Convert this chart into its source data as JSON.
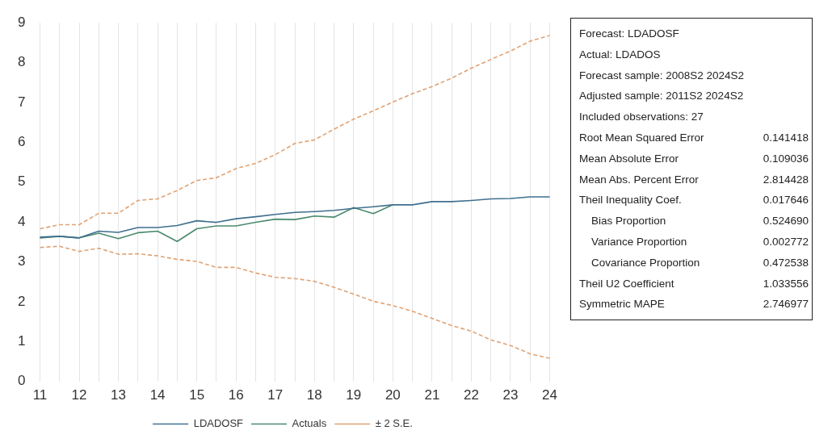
{
  "chart_data": {
    "type": "line",
    "categories": [
      "11",
      null,
      "12",
      null,
      "13",
      null,
      "14",
      null,
      "15",
      null,
      "16",
      null,
      "17",
      null,
      "18",
      null,
      "19",
      null,
      "20",
      null,
      "21",
      null,
      "22",
      null,
      "23",
      null,
      "24"
    ],
    "series": [
      {
        "name": "LDADOSF",
        "color": "#3f6f8f",
        "values": [
          3.62,
          3.64,
          3.6,
          3.77,
          3.74,
          3.86,
          3.86,
          3.91,
          4.03,
          3.99,
          4.08,
          4.13,
          4.19,
          4.24,
          4.26,
          4.29,
          4.34,
          4.38,
          4.43,
          4.43,
          4.51,
          4.51,
          4.54,
          4.58,
          4.59,
          4.63,
          4.63
        ]
      },
      {
        "name": "Actuals",
        "color": "#4a8a6e",
        "values": [
          3.6,
          3.64,
          3.6,
          3.72,
          3.58,
          3.73,
          3.77,
          3.51,
          3.83,
          3.9,
          3.9,
          3.99,
          4.07,
          4.06,
          4.15,
          4.12,
          4.36,
          4.21,
          4.43,
          null,
          null,
          null,
          null,
          null,
          null,
          null,
          null
        ]
      },
      {
        "name": "± 2 S.E.",
        "color": "#e0a274",
        "line_style": "dashed",
        "values": [
          3.83,
          3.93,
          3.93,
          4.22,
          4.22,
          4.54,
          4.58,
          4.79,
          5.04,
          5.11,
          5.34,
          5.47,
          5.69,
          5.97,
          6.06,
          6.33,
          6.58,
          6.79,
          7.01,
          7.22,
          7.4,
          7.61,
          7.86,
          8.08,
          8.29,
          8.54,
          8.68
        ]
      },
      {
        "color": "#e0a274",
        "line_style": "dashed",
        "values": [
          3.36,
          3.39,
          3.26,
          3.34,
          3.19,
          3.2,
          3.15,
          3.06,
          3.01,
          2.86,
          2.86,
          2.72,
          2.61,
          2.58,
          2.51,
          2.36,
          2.19,
          2.01,
          1.9,
          1.76,
          1.58,
          1.4,
          1.26,
          1.04,
          0.9,
          0.69,
          0.58
        ]
      }
    ],
    "ylim": [
      0,
      9
    ],
    "yticks": [
      0,
      1,
      2,
      3,
      4,
      5,
      6,
      7,
      8,
      9
    ],
    "grid": "x",
    "legend": "bottom",
    "marker": "none",
    "line_style": "solid",
    "annotations": [
      "Forecast: LDADOSF",
      "Actual: LDADOS",
      "Forecast sample: 2008S2 2024S2",
      "Adjusted sample: 2011S2 2024S2",
      "Included observations: 27",
      "Root Mean Squared Error\t0.141418",
      "Mean Absolute Error\t0.109036",
      "Mean Abs. Percent Error\t2.814428",
      "Theil Inequality Coef.\t0.017646",
      "    Bias Proportion\t0.524690",
      "    Variance Proportion\t0.002772",
      "    Covariance Proportion\t0.472538",
      "Theil U2 Coefficient\t1.033556",
      "Symmetric MAPE\t2.746977"
    ]
  }
}
